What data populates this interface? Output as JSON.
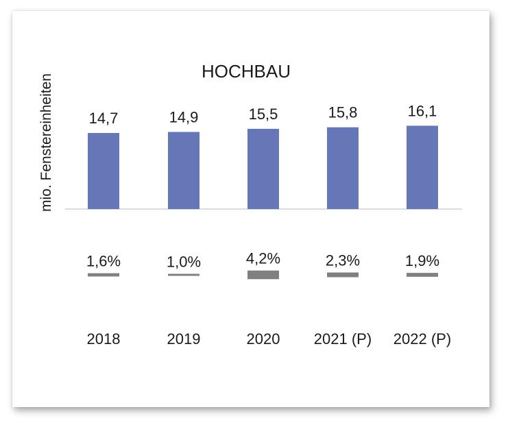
{
  "chart_data": {
    "type": "bar",
    "title": "HOCHBAU",
    "ylabel": "mio. Fenstereinheiten",
    "categories": [
      "2018",
      "2019",
      "2020",
      "2021 (P)",
      "2022 (P)"
    ],
    "value_labels": [
      "14,7",
      "14,9",
      "15,5",
      "15,8",
      "16,1"
    ],
    "values": [
      14.7,
      14.9,
      15.5,
      15.8,
      16.1
    ],
    "growth_labels": [
      "1,6%",
      "1,0%",
      "4,2%",
      "2,3%",
      "1,9%"
    ],
    "growth": [
      1.6,
      1.0,
      4.2,
      2.3,
      1.9
    ],
    "ylim": [
      0,
      16.5
    ],
    "colors": {
      "bar": "#6677b8",
      "growth_bar": "#808080",
      "axis": "#d0d0d0"
    }
  }
}
